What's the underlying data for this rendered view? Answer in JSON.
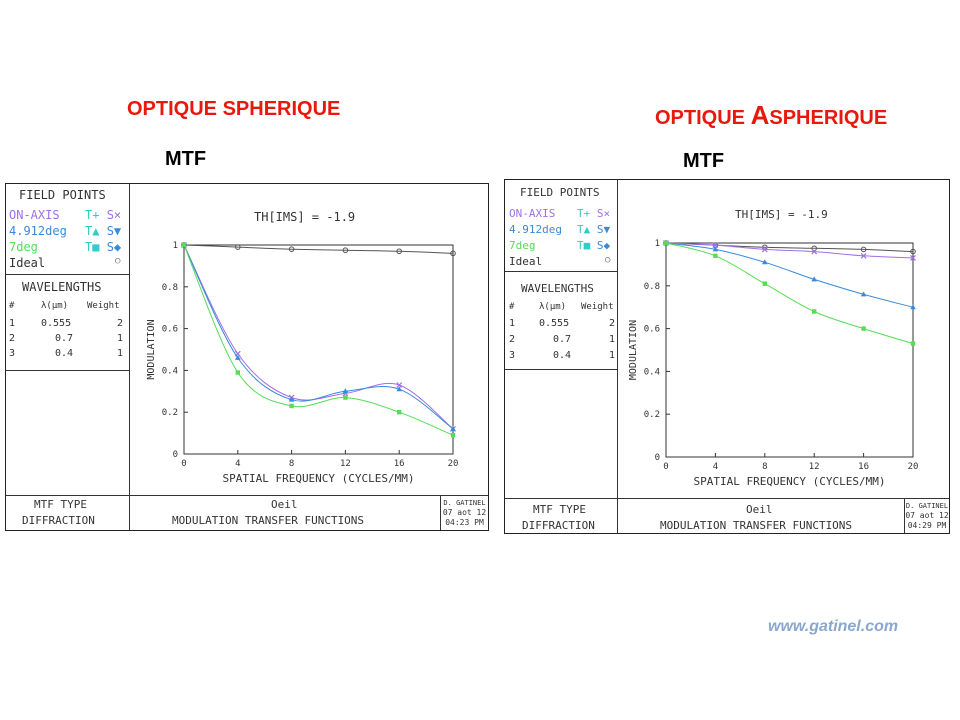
{
  "slide": {
    "left_title": "OPTIQUE SPHERIQUE",
    "right_title_first": "OPTIQUE ",
    "right_title_big": "A",
    "right_title_rest": "SPHERIQUE",
    "left_subtitle": "MTF",
    "right_subtitle": "MTF",
    "website": "www.gatinel.com"
  },
  "panels": [
    {
      "field_points_header": "FIELD POINTS",
      "fields": [
        {
          "name": "ON-AXIS",
          "color": "#a070e8",
          "t": "T+",
          "s": "S×"
        },
        {
          "name": "4.912deg",
          "color": "#3a8ad8",
          "t": "T▲",
          "s": "S▼"
        },
        {
          "name": "7deg",
          "color": "#55dd55",
          "t": "T■",
          "s": "S◆"
        },
        {
          "name": "Ideal",
          "color": "#333333",
          "t": "",
          "s": "○"
        }
      ],
      "wavelengths_header": "WAVELENGTHS",
      "wl_cols": {
        "n": "#",
        "lambda": "λ(μm)",
        "weight": "Weight"
      },
      "wavelengths": [
        {
          "n": "1",
          "lambda": "0.555",
          "weight": "2"
        },
        {
          "n": "2",
          "lambda": "0.7",
          "weight": "1"
        },
        {
          "n": "3",
          "lambda": "0.4",
          "weight": "1"
        }
      ],
      "plot_label": "TH[IMS] = -1.9",
      "mtf_type_label": "MTF TYPE",
      "mtf_type_value": "DIFFRACTION",
      "system_name": "Oeil",
      "plot_caption": "MODULATION TRANSFER FUNCTIONS",
      "stamp_author": "D. GATINEL",
      "stamp_date": "07 aot 12",
      "stamp_time": "04:23 PM"
    },
    {
      "field_points_header": "FIELD POINTS",
      "fields": [
        {
          "name": "ON-AXIS",
          "color": "#a070e8",
          "t": "T+",
          "s": "S×"
        },
        {
          "name": "4.912deg",
          "color": "#3a8ad8",
          "t": "T▲",
          "s": "S▼"
        },
        {
          "name": "7deg",
          "color": "#55dd55",
          "t": "T■",
          "s": "S◆"
        },
        {
          "name": "Ideal",
          "color": "#333333",
          "t": "",
          "s": "○"
        }
      ],
      "wavelengths_header": "WAVELENGTHS",
      "wl_cols": {
        "n": "#",
        "lambda": "λ(μm)",
        "weight": "Weight"
      },
      "wavelengths": [
        {
          "n": "1",
          "lambda": "0.555",
          "weight": "2"
        },
        {
          "n": "2",
          "lambda": "0.7",
          "weight": "1"
        },
        {
          "n": "3",
          "lambda": "0.4",
          "weight": "1"
        }
      ],
      "plot_label": "TH[IMS] = -1.9",
      "mtf_type_label": "MTF TYPE",
      "mtf_type_value": "DIFFRACTION",
      "system_name": "Oeil",
      "plot_caption": "MODULATION TRANSFER FUNCTIONS",
      "stamp_author": "D. GATINEL",
      "stamp_date": "07 aot 12",
      "stamp_time": "04:29 PM"
    }
  ],
  "chart_data": [
    {
      "type": "line",
      "xlabel": "SPATIAL FREQUENCY (CYCLES/MM)",
      "ylabel": "MODULATION",
      "xlim": [
        0,
        20
      ],
      "ylim": [
        0,
        1
      ],
      "xticks": [
        "0",
        "4",
        "8",
        "12",
        "16",
        "20"
      ],
      "yticks": [
        "0",
        "0.2",
        "0.4",
        "0.6",
        "0.8",
        "1"
      ],
      "x": [
        0,
        4,
        8,
        12,
        16,
        20
      ],
      "series": [
        {
          "name": "Ideal",
          "color": "#555555",
          "marker": "circle",
          "values": [
            1.0,
            0.99,
            0.98,
            0.975,
            0.97,
            0.96
          ]
        },
        {
          "name": "ON-AXIS",
          "color": "#a070e8",
          "marker": "cross",
          "values": [
            1.0,
            0.48,
            0.27,
            0.29,
            0.33,
            0.12
          ]
        },
        {
          "name": "4.912deg",
          "color": "#3a8ad8",
          "marker": "triangle",
          "values": [
            1.0,
            0.46,
            0.26,
            0.3,
            0.31,
            0.12
          ]
        },
        {
          "name": "7deg",
          "color": "#55dd55",
          "marker": "square",
          "values": [
            1.0,
            0.39,
            0.23,
            0.27,
            0.2,
            0.09
          ]
        }
      ]
    },
    {
      "type": "line",
      "xlabel": "SPATIAL FREQUENCY (CYCLES/MM)",
      "ylabel": "MODULATION",
      "xlim": [
        0,
        20
      ],
      "ylim": [
        0,
        1
      ],
      "xticks": [
        "0",
        "4",
        "8",
        "12",
        "16",
        "20"
      ],
      "yticks": [
        "0",
        "0.2",
        "0.4",
        "0.6",
        "0.8",
        "1"
      ],
      "x": [
        0,
        4,
        8,
        12,
        16,
        20
      ],
      "series": [
        {
          "name": "Ideal",
          "color": "#555555",
          "marker": "circle",
          "values": [
            1.0,
            0.99,
            0.98,
            0.975,
            0.97,
            0.96
          ]
        },
        {
          "name": "ON-AXIS",
          "color": "#a070e8",
          "marker": "cross",
          "values": [
            1.0,
            0.99,
            0.97,
            0.96,
            0.94,
            0.93
          ]
        },
        {
          "name": "4.912deg",
          "color": "#3a8ad8",
          "marker": "triangle",
          "values": [
            1.0,
            0.97,
            0.91,
            0.83,
            0.76,
            0.7
          ]
        },
        {
          "name": "7deg",
          "color": "#55dd55",
          "marker": "square",
          "values": [
            1.0,
            0.94,
            0.81,
            0.68,
            0.6,
            0.53
          ]
        }
      ]
    }
  ]
}
